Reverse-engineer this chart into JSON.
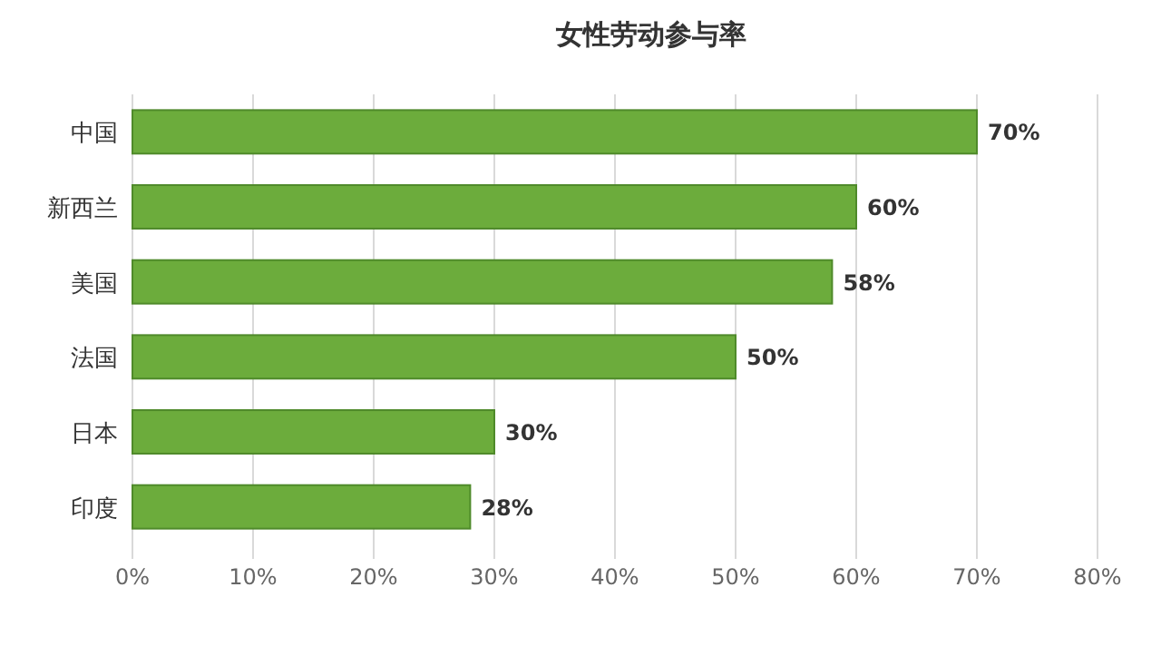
{
  "chart_data": {
    "type": "bar",
    "orientation": "horizontal",
    "title": "女性劳动参与率",
    "categories": [
      "中国",
      "新西兰",
      "美国",
      "法国",
      "日本",
      "印度"
    ],
    "values": [
      70,
      60,
      58,
      50,
      30,
      28
    ],
    "value_labels": [
      "70%",
      "60%",
      "58%",
      "50%",
      "30%",
      "28%"
    ],
    "color": "#6cac3c",
    "xlim": [
      0,
      80
    ],
    "xticks": [
      {
        "value": 0,
        "label": "0%"
      },
      {
        "value": 10,
        "label": "10%"
      },
      {
        "value": 20,
        "label": "20%"
      },
      {
        "value": 30,
        "label": "30%"
      },
      {
        "value": 40,
        "label": "40%"
      },
      {
        "value": 50,
        "label": "50%"
      },
      {
        "value": 60,
        "label": "60%"
      },
      {
        "value": 70,
        "label": "70%"
      },
      {
        "value": 80,
        "label": "80%"
      }
    ],
    "grid": "x"
  }
}
